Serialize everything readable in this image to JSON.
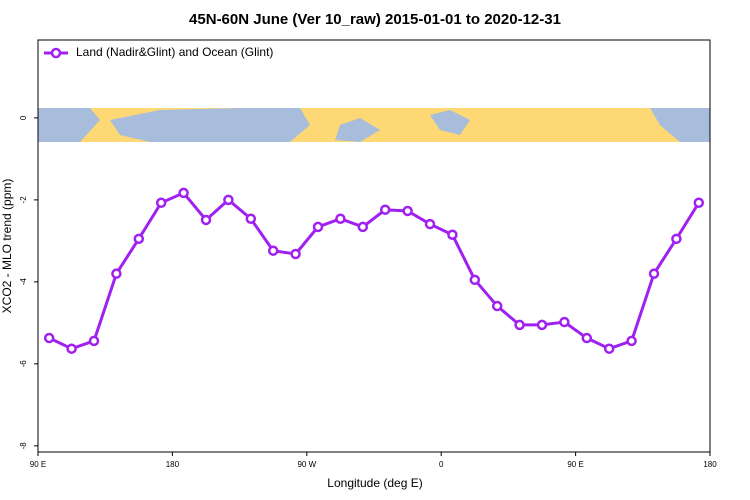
{
  "chart_data": {
    "type": "line",
    "title": "45N-60N June (Ver 10_raw)   2015-01-01 to 2020-12-31",
    "x_label": "Longitude (deg E)",
    "y_label": "XCO2 - MLO trend (ppm)",
    "x": [
      97.5,
      112.5,
      127.5,
      142.5,
      157.5,
      172.5,
      187.5,
      202.5,
      217.5,
      232.5,
      247.5,
      262.5,
      277.5,
      292.5,
      307.5,
      322.5,
      337.5,
      352.5,
      367.5,
      382.5,
      397.5,
      412.5,
      427.5,
      442.5,
      457.5,
      472.5,
      487.5,
      502.5,
      517.5,
      532.5
    ],
    "series": [
      {
        "name": "Land (Nadir&Glint) and Ocean (Glint)",
        "color": "#a020f0",
        "values": [
          -5.37,
          -5.63,
          -5.44,
          -3.8,
          -2.95,
          -2.07,
          -1.83,
          -2.49,
          -2.0,
          -2.46,
          -3.24,
          -3.32,
          -2.66,
          -2.46,
          -2.66,
          -2.24,
          -2.27,
          -2.59,
          -2.85,
          -3.95,
          -4.59,
          -5.05,
          -5.05,
          -4.98,
          -5.37,
          -5.63,
          -5.44,
          -3.8,
          -2.95,
          -2.07
        ]
      }
    ],
    "xlim": [
      90,
      540
    ],
    "ylim": [
      -8.15,
      1.9
    ],
    "xticks": [
      {
        "value": 90,
        "label": "90 E"
      },
      180,
      {
        "value": 270,
        "label": "90 W"
      },
      {
        "value": 360,
        "label": "0"
      },
      {
        "value": 450,
        "label": "90 E"
      },
      {
        "value": 540,
        "label": "180"
      }
    ],
    "yticks": [
      0,
      -2,
      -4,
      -6,
      -8
    ],
    "legend": "top-left"
  }
}
